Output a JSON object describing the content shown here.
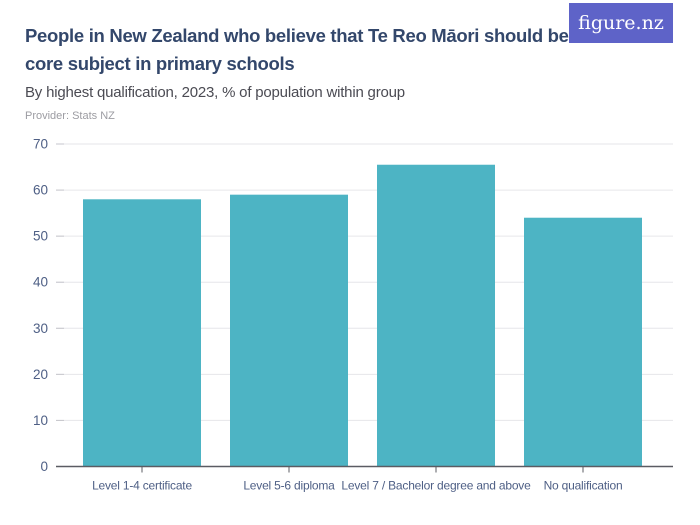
{
  "header": {
    "title": "People in New Zealand who believe that Te Reo Māori should be a core subject in primary schools",
    "subtitle": "By highest qualification, 2023, % of population within group",
    "provider": "Provider: Stats NZ"
  },
  "logo": {
    "text": "figure.nz"
  },
  "colors": {
    "bar": "#4db4c4",
    "logo_bg": "#5e63c8",
    "title_text": "#33476b",
    "subtitle_text": "#4b4b53",
    "provider_text": "#9c9ca2",
    "axis_label": "#4e5f85",
    "gridline": "#e6e6ea",
    "gridline_tick": "#c6c6cc",
    "axis_line": "#5b5c63"
  },
  "chart_data": {
    "type": "bar",
    "title": "People in New Zealand who believe that Te Reo Māori should be a core subject in primary schools",
    "subtitle": "By highest qualification, 2023, % of population within group",
    "categories": [
      "Level 1-4 certificate",
      "Level 5-6 diploma",
      "Level 7 / Bachelor degree and above",
      "No qualification"
    ],
    "values": [
      58,
      59,
      65.5,
      54
    ],
    "xlabel": "",
    "ylabel": "",
    "ylim": [
      0,
      70
    ],
    "ytick_step": 10,
    "grid": true,
    "legend": false,
    "bar_color": "#4db4c4"
  }
}
